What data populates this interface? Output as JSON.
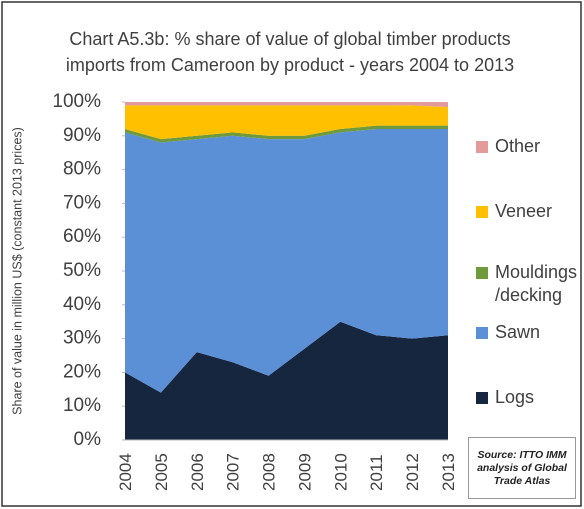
{
  "chart_data": {
    "type": "stacked-area",
    "title": "Chart A5.3b: % share of value of global timber products imports from Cameroon by product - years 2004 to 2013",
    "y_label": "Share of value in million US$ (constant 2013 prices)",
    "source": "Source: ITTO IMM analysis of Global Trade Atlas",
    "categories": [
      "2004",
      "2005",
      "2006",
      "2007",
      "2008",
      "2009",
      "2010",
      "2011",
      "2012",
      "2013"
    ],
    "series": [
      {
        "name": "Logs",
        "color": "#17263f",
        "values": [
          20,
          14,
          26,
          23,
          19,
          27,
          35,
          31,
          30,
          31
        ]
      },
      {
        "name": "Sawn",
        "color": "#5b8fd6",
        "values": [
          71,
          74,
          63,
          67,
          70,
          62,
          56,
          61,
          62,
          61
        ]
      },
      {
        "name": "Mouldings /decking",
        "color": "#6f9a3c",
        "values": [
          1,
          1,
          1,
          1,
          1,
          1,
          1,
          1,
          1,
          1
        ]
      },
      {
        "name": "Veneer",
        "color": "#ffc000",
        "values": [
          7,
          10,
          9,
          8,
          9,
          9,
          7,
          6,
          6,
          5.5
        ]
      },
      {
        "name": "Other",
        "color": "#e39a9a",
        "values": [
          1,
          1,
          1,
          1,
          1,
          1,
          1,
          1,
          1,
          1.5
        ]
      }
    ],
    "ylim": [
      0,
      100
    ],
    "yticks": [
      {
        "value": 0,
        "label": "0%"
      },
      {
        "value": 10,
        "label": "10%"
      },
      {
        "value": 20,
        "label": "20%"
      },
      {
        "value": 30,
        "label": "30%"
      },
      {
        "value": 40,
        "label": "40%"
      },
      {
        "value": 50,
        "label": "50%"
      },
      {
        "value": 60,
        "label": "60%"
      },
      {
        "value": 70,
        "label": "70%"
      },
      {
        "value": 80,
        "label": "80%"
      },
      {
        "value": 90,
        "label": "90%"
      },
      {
        "value": 100,
        "label": "100%"
      }
    ],
    "legend": "right"
  }
}
